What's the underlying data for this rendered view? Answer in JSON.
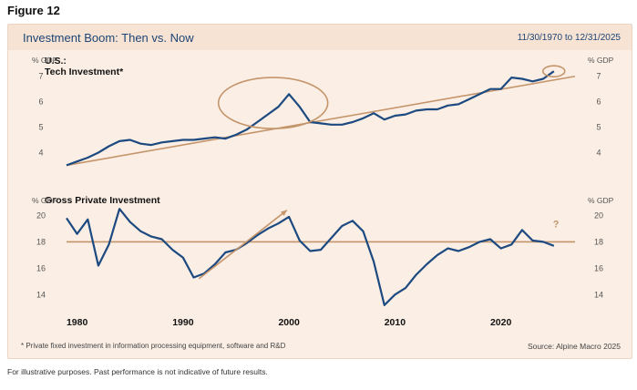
{
  "figure_label": "Figure 12",
  "panel_title": "Investment Boom: Then vs. Now",
  "date_range": "11/30/1970 to 12/31/2025",
  "footnote": "* Private fixed investment in information processing equipment, software and R&D",
  "source": "Source: Alpine Macro 2025",
  "disclaimer": "For illustrative purposes. Past performance is not indicative of future results.",
  "colors": {
    "line": "#1c4a80",
    "annotation": "#c4956b",
    "panel_bg": "#fbeee4",
    "header_bg": "#f6e3d4"
  },
  "chart_data": [
    {
      "type": "line",
      "title": "U.S.:",
      "subtitle": "Tech Investment*",
      "ylabel_left": "% GDP",
      "ylabel_right": "% GDP",
      "yticks": [
        4,
        5,
        6,
        7
      ],
      "ylim": [
        3.3,
        7.6
      ],
      "xlim": [
        1979.0,
        2027.0
      ],
      "grid": false,
      "x": [
        1979,
        1980,
        1981,
        1982,
        1983,
        1984,
        1985,
        1986,
        1987,
        1988,
        1989,
        1990,
        1991,
        1992,
        1993,
        1994,
        1995,
        1996,
        1997,
        1998,
        1999,
        2000,
        2001,
        2002,
        2003,
        2004,
        2005,
        2006,
        2007,
        2008,
        2009,
        2010,
        2011,
        2012,
        2013,
        2014,
        2015,
        2016,
        2017,
        2018,
        2019,
        2020,
        2021,
        2022,
        2023,
        2024,
        2025
      ],
      "values": [
        3.5,
        3.65,
        3.8,
        4.0,
        4.25,
        4.45,
        4.5,
        4.35,
        4.3,
        4.4,
        4.45,
        4.5,
        4.5,
        4.55,
        4.6,
        4.55,
        4.7,
        4.9,
        5.2,
        5.5,
        5.8,
        6.3,
        5.8,
        5.2,
        5.15,
        5.1,
        5.1,
        5.2,
        5.35,
        5.55,
        5.3,
        5.45,
        5.5,
        5.65,
        5.7,
        5.7,
        5.85,
        5.9,
        6.1,
        6.3,
        6.5,
        6.5,
        6.95,
        6.9,
        6.8,
        6.9,
        7.2
      ],
      "trend_line": {
        "x": [
          1979,
          2027
        ],
        "values": [
          3.5,
          7.0
        ]
      },
      "annotations": [
        "ellipse around 1995-2002 peak",
        "small ellipse around 2025 value"
      ]
    },
    {
      "type": "line",
      "title": "Gross Private Investment",
      "ylabel_left": "% GDP",
      "ylabel_right": "% GDP",
      "yticks": [
        14,
        16,
        18,
        20
      ],
      "ylim": [
        12.5,
        21.0
      ],
      "xlim": [
        1979.0,
        2027.0
      ],
      "xticks": [
        1980,
        1990,
        2000,
        2010,
        2020
      ],
      "grid": false,
      "x": [
        1979,
        1980,
        1981,
        1982,
        1983,
        1984,
        1985,
        1986,
        1987,
        1988,
        1989,
        1990,
        1991,
        1992,
        1993,
        1994,
        1995,
        1996,
        1997,
        1998,
        1999,
        2000,
        2001,
        2002,
        2003,
        2004,
        2005,
        2006,
        2007,
        2008,
        2009,
        2010,
        2011,
        2012,
        2013,
        2014,
        2015,
        2016,
        2017,
        2018,
        2019,
        2020,
        2021,
        2022,
        2023,
        2024,
        2025
      ],
      "values": [
        19.8,
        18.6,
        19.7,
        16.2,
        17.8,
        20.5,
        19.5,
        18.8,
        18.4,
        18.2,
        17.4,
        16.8,
        15.3,
        15.6,
        16.3,
        17.2,
        17.4,
        17.9,
        18.5,
        19.0,
        19.4,
        19.9,
        18.1,
        17.3,
        17.4,
        18.3,
        19.2,
        19.6,
        18.8,
        16.5,
        13.2,
        14.0,
        14.5,
        15.5,
        16.3,
        17.0,
        17.5,
        17.3,
        17.6,
        18.0,
        18.2,
        17.5,
        17.8,
        18.9,
        18.1,
        18.0,
        17.7
      ],
      "reference_line": 18.0,
      "annotations": [
        "rising arrow 1992-2000",
        "?"
      ],
      "annotation_text": "?"
    }
  ]
}
